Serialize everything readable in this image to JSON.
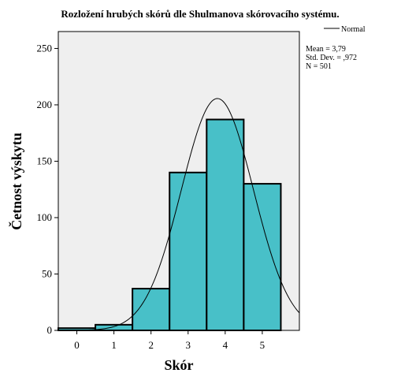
{
  "chart_data": {
    "type": "bar",
    "title": "Rozložení hrubých skórů dle Shulmanova skórovacího systému.",
    "xlabel": "Skór",
    "ylabel": "Četnost výskytu",
    "categories": [
      "0",
      "1",
      "2",
      "3",
      "4",
      "5"
    ],
    "values": [
      2,
      5,
      37,
      140,
      187,
      130
    ],
    "ylim": [
      0,
      265
    ],
    "yticks": [
      0,
      50,
      100,
      150,
      200,
      250
    ],
    "xlim": [
      -0.5,
      6.0
    ],
    "legend": {
      "label": "Normal",
      "placement": "top-right"
    },
    "stats": [
      "Mean = 3,79",
      "Std. Dev. = ,972",
      "N = 501"
    ],
    "normal_curve": {
      "mean": 3.79,
      "sd": 0.972,
      "n": 501,
      "bin_width": 1
    },
    "grid": false,
    "bar_color": "#48C0C8",
    "plot_background": "#EFEFEF"
  }
}
